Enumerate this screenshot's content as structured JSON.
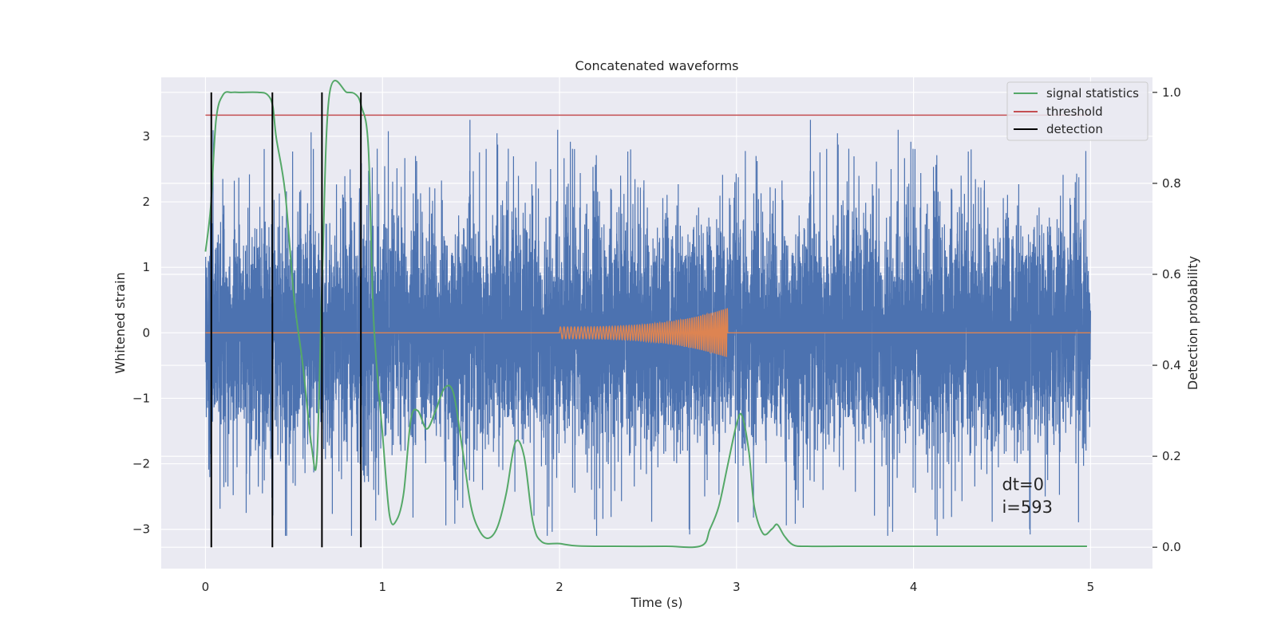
{
  "chart_data": {
    "type": "line",
    "title": "Concatenated waveforms",
    "xlabel": "Time (s)",
    "ylabel": "Whitened strain",
    "y2label": "Detection probability",
    "xlim": [
      -0.25,
      5.35
    ],
    "ylim": [
      -3.6,
      3.9
    ],
    "y2lim": [
      -0.047,
      1.033
    ],
    "xticks": [
      0,
      1,
      2,
      3,
      4,
      5
    ],
    "yticks": [
      -3,
      -2,
      -1,
      0,
      1,
      2,
      3
    ],
    "y2ticks": [
      0.0,
      0.2,
      0.4,
      0.6,
      0.8,
      1.0
    ],
    "y2tick_labels": [
      "0.0",
      "0.2",
      "0.4",
      "0.6",
      "0.8",
      "1.0"
    ],
    "ytick_labels": [
      "−3",
      "−2",
      "−1",
      "0",
      "1",
      "2",
      "3"
    ],
    "grid": true,
    "legend_position": "top-right",
    "colors": {
      "background": "#eaeaf2",
      "grid": "#ffffff",
      "strain": "#4c72b0",
      "template": "#dd8452",
      "statistics": "#55a868",
      "threshold": "#c44e52",
      "detection": "#000000"
    },
    "series": [
      {
        "name": "",
        "role": "strain",
        "axis": "left",
        "x_range": [
          0,
          5
        ],
        "noise_std": 0.85,
        "peak_max": 3.6,
        "peak_min": -3.1
      },
      {
        "name": "",
        "role": "template",
        "axis": "left",
        "x_range": [
          2.0,
          2.95
        ],
        "amplitude_start": 0.09,
        "amplitude_end": 0.38
      },
      {
        "name": "signal statistics",
        "role": "statistics",
        "axis": "right",
        "x": [
          0.0,
          0.03,
          0.06,
          0.1,
          0.15,
          0.2,
          0.3,
          0.35,
          0.38,
          0.4,
          0.45,
          0.5,
          0.55,
          0.6,
          0.63,
          0.66,
          0.7,
          0.8,
          0.85,
          0.88,
          0.92,
          0.95,
          1.0,
          1.04,
          1.08,
          1.12,
          1.16,
          1.2,
          1.25,
          1.3,
          1.35,
          1.4,
          1.45,
          1.5,
          1.55,
          1.6,
          1.65,
          1.7,
          1.75,
          1.8,
          1.85,
          1.9,
          2.0,
          2.1,
          2.3,
          2.6,
          2.8,
          2.85,
          2.9,
          2.95,
          3.0,
          3.03,
          3.07,
          3.1,
          3.15,
          3.2,
          3.23,
          3.27,
          3.32,
          3.4,
          3.6,
          4.0,
          4.5,
          4.98
        ],
        "y": [
          0.65,
          0.75,
          0.94,
          0.995,
          1.0,
          1.0,
          1.0,
          0.995,
          0.97,
          0.9,
          0.78,
          0.55,
          0.4,
          0.22,
          0.2,
          0.6,
          0.995,
          1.0,
          0.995,
          0.97,
          0.88,
          0.5,
          0.25,
          0.07,
          0.06,
          0.12,
          0.28,
          0.3,
          0.26,
          0.3,
          0.35,
          0.34,
          0.22,
          0.09,
          0.035,
          0.02,
          0.045,
          0.12,
          0.23,
          0.2,
          0.055,
          0.012,
          0.008,
          0.003,
          0.002,
          0.002,
          0.003,
          0.04,
          0.09,
          0.18,
          0.27,
          0.29,
          0.21,
          0.09,
          0.03,
          0.04,
          0.05,
          0.025,
          0.005,
          0.002,
          0.002,
          0.002,
          0.002,
          0.002
        ]
      },
      {
        "name": "threshold",
        "role": "threshold",
        "axis": "right",
        "x": [
          0,
          5
        ],
        "y": [
          0.95,
          0.95
        ]
      },
      {
        "name": "detection",
        "role": "detection",
        "axis": "right",
        "x": [
          0.033,
          0.378,
          0.658,
          0.878
        ],
        "y_range": [
          0.0,
          1.0
        ]
      }
    ],
    "annotations": [
      {
        "text": "dt=0",
        "x": 4.5,
        "y": -2.4
      },
      {
        "text": "i=593",
        "x": 4.5,
        "y": -2.75
      }
    ]
  }
}
